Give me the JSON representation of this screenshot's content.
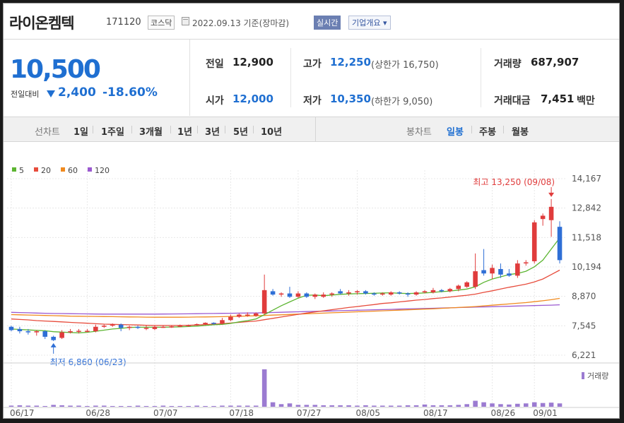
{
  "header": {
    "company_name": "라이온켐텍",
    "code": "171120",
    "market": "코스닥",
    "date_text": "2022.09.13 기준(장마감)",
    "realtime_label": "실시간",
    "company_info_label": "기업개요 ▾"
  },
  "price": {
    "current": "10,500",
    "change_label": "전일대비",
    "change": "2,400",
    "change_rate": "-18.60%"
  },
  "stats": {
    "prev_close_label": "전일",
    "prev_close": "12,900",
    "high_label": "고가",
    "high": "12,250",
    "upper_limit": "(상한가 16,750)",
    "volume_label": "거래량",
    "volume": "687,907",
    "open_label": "시가",
    "open": "12,000",
    "low_label": "저가",
    "low": "10,350",
    "lower_limit": "(하한가 9,050)",
    "amount_label": "거래대금",
    "amount": "7,451",
    "amount_unit": "백만"
  },
  "toolbar": {
    "line_chart_label": "선차트",
    "ranges": [
      "1일",
      "1주일",
      "3개월",
      "1년",
      "3년",
      "5년",
      "10년"
    ],
    "candle_chart_label": "봉차트",
    "candle_modes": [
      "일봉",
      "주봉",
      "월봉"
    ],
    "selected_candle_mode": "일봉"
  },
  "chart_data": {
    "type": "candlestick",
    "ma_legend": [
      {
        "name": "5",
        "color": "#5cb531"
      },
      {
        "name": "20",
        "color": "#e74c3c"
      },
      {
        "name": "60",
        "color": "#f08a1f"
      },
      {
        "name": "120",
        "color": "#9b59d0"
      }
    ],
    "y_ticks": [
      "14,167",
      "12,842",
      "11,518",
      "10,194",
      "8,870",
      "7,545",
      "6,221"
    ],
    "ylim": [
      6221,
      14167
    ],
    "x_ticks": [
      "06/17",
      "06/28",
      "07/07",
      "07/18",
      "07/27",
      "08/05",
      "08/17",
      "08/26",
      "09/01"
    ],
    "high_annotation": "최고 13,250 (09/08)",
    "low_annotation": "최저 6,860 (06/23)",
    "volume_legend": "거래량",
    "candles": [
      {
        "o": 7500,
        "h": 7550,
        "l": 7300,
        "c": 7350
      },
      {
        "o": 7400,
        "h": 7500,
        "l": 7200,
        "c": 7300
      },
      {
        "o": 7300,
        "h": 7400,
        "l": 7150,
        "c": 7250
      },
      {
        "o": 7250,
        "h": 7350,
        "l": 7100,
        "c": 7300
      },
      {
        "o": 7300,
        "h": 7350,
        "l": 6950,
        "c": 7050
      },
      {
        "o": 7050,
        "h": 7100,
        "l": 6860,
        "c": 6900
      },
      {
        "o": 7000,
        "h": 7350,
        "l": 6950,
        "c": 7250
      },
      {
        "o": 7250,
        "h": 7400,
        "l": 7200,
        "c": 7300
      },
      {
        "o": 7300,
        "h": 7400,
        "l": 7200,
        "c": 7320
      },
      {
        "o": 7300,
        "h": 7400,
        "l": 7250,
        "c": 7320
      },
      {
        "o": 7300,
        "h": 7600,
        "l": 7250,
        "c": 7500
      },
      {
        "o": 7500,
        "h": 7600,
        "l": 7450,
        "c": 7550
      },
      {
        "o": 7550,
        "h": 7650,
        "l": 7500,
        "c": 7600
      },
      {
        "o": 7600,
        "h": 7650,
        "l": 7300,
        "c": 7450
      },
      {
        "o": 7450,
        "h": 7550,
        "l": 7350,
        "c": 7500
      },
      {
        "o": 7500,
        "h": 7550,
        "l": 7400,
        "c": 7450
      },
      {
        "o": 7450,
        "h": 7550,
        "l": 7350,
        "c": 7450
      },
      {
        "o": 7400,
        "h": 7550,
        "l": 7350,
        "c": 7500
      },
      {
        "o": 7500,
        "h": 7550,
        "l": 7450,
        "c": 7500
      },
      {
        "o": 7500,
        "h": 7550,
        "l": 7450,
        "c": 7520
      },
      {
        "o": 7520,
        "h": 7600,
        "l": 7500,
        "c": 7550
      },
      {
        "o": 7550,
        "h": 7600,
        "l": 7500,
        "c": 7580
      },
      {
        "o": 7580,
        "h": 7650,
        "l": 7550,
        "c": 7620
      },
      {
        "o": 7620,
        "h": 7700,
        "l": 7580,
        "c": 7680
      },
      {
        "o": 7680,
        "h": 7700,
        "l": 7600,
        "c": 7650
      },
      {
        "o": 7650,
        "h": 7900,
        "l": 7600,
        "c": 7800
      },
      {
        "o": 7800,
        "h": 8050,
        "l": 7750,
        "c": 7950
      },
      {
        "o": 7950,
        "h": 8100,
        "l": 7900,
        "c": 8050
      },
      {
        "o": 8050,
        "h": 8150,
        "l": 7950,
        "c": 8050
      },
      {
        "o": 8000,
        "h": 8150,
        "l": 7950,
        "c": 8100
      },
      {
        "o": 8100,
        "h": 9850,
        "l": 8050,
        "c": 9150
      },
      {
        "o": 9100,
        "h": 9200,
        "l": 8900,
        "c": 8950
      },
      {
        "o": 8950,
        "h": 9050,
        "l": 8850,
        "c": 9000
      },
      {
        "o": 9000,
        "h": 9300,
        "l": 8800,
        "c": 8850
      },
      {
        "o": 8850,
        "h": 9100,
        "l": 8800,
        "c": 9000
      },
      {
        "o": 9000,
        "h": 9050,
        "l": 8800,
        "c": 8850
      },
      {
        "o": 8850,
        "h": 9000,
        "l": 8750,
        "c": 8950
      },
      {
        "o": 8850,
        "h": 9050,
        "l": 8800,
        "c": 8950
      },
      {
        "o": 8950,
        "h": 9050,
        "l": 8850,
        "c": 9000
      },
      {
        "o": 9100,
        "h": 9200,
        "l": 8950,
        "c": 9000
      },
      {
        "o": 9000,
        "h": 9150,
        "l": 8900,
        "c": 9050
      },
      {
        "o": 9050,
        "h": 9150,
        "l": 8950,
        "c": 9100
      },
      {
        "o": 9100,
        "h": 9150,
        "l": 8950,
        "c": 9000
      },
      {
        "o": 9000,
        "h": 9050,
        "l": 8900,
        "c": 8950
      },
      {
        "o": 8950,
        "h": 9050,
        "l": 8900,
        "c": 9000
      },
      {
        "o": 8950,
        "h": 9100,
        "l": 8900,
        "c": 9050
      },
      {
        "o": 9050,
        "h": 9100,
        "l": 8950,
        "c": 9000
      },
      {
        "o": 9000,
        "h": 9050,
        "l": 8850,
        "c": 8950
      },
      {
        "o": 8950,
        "h": 9100,
        "l": 8900,
        "c": 9050
      },
      {
        "o": 9050,
        "h": 9150,
        "l": 9000,
        "c": 9100
      },
      {
        "o": 9050,
        "h": 9250,
        "l": 9000,
        "c": 9150
      },
      {
        "o": 9150,
        "h": 9200,
        "l": 9050,
        "c": 9100
      },
      {
        "o": 9100,
        "h": 9250,
        "l": 9050,
        "c": 9200
      },
      {
        "o": 9200,
        "h": 9400,
        "l": 9100,
        "c": 9350
      },
      {
        "o": 9300,
        "h": 9550,
        "l": 9250,
        "c": 9500
      },
      {
        "o": 9300,
        "h": 10800,
        "l": 9200,
        "c": 10000
      },
      {
        "o": 10050,
        "h": 11000,
        "l": 9800,
        "c": 9900
      },
      {
        "o": 9900,
        "h": 10300,
        "l": 9650,
        "c": 10150
      },
      {
        "o": 10100,
        "h": 10350,
        "l": 9700,
        "c": 9850
      },
      {
        "o": 9900,
        "h": 10100,
        "l": 9750,
        "c": 9800
      },
      {
        "o": 9800,
        "h": 10500,
        "l": 9700,
        "c": 10350
      },
      {
        "o": 10400,
        "h": 10500,
        "l": 10250,
        "c": 10400
      },
      {
        "o": 10450,
        "h": 12300,
        "l": 10350,
        "c": 12200
      },
      {
        "o": 12350,
        "h": 12600,
        "l": 12050,
        "c": 12500
      },
      {
        "o": 12300,
        "h": 13250,
        "l": 11550,
        "c": 12900
      },
      {
        "o": 12000,
        "h": 12250,
        "l": 10350,
        "c": 10500
      }
    ],
    "ma5": [
      7400,
      7380,
      7360,
      7340,
      7320,
      7280,
      7260,
      7240,
      7230,
      7250,
      7300,
      7350,
      7400,
      7430,
      7470,
      7480,
      7480,
      7480,
      7480,
      7490,
      7500,
      7510,
      7530,
      7560,
      7590,
      7610,
      7650,
      7720,
      7780,
      7850,
      8050,
      8250,
      8450,
      8620,
      8790,
      8920,
      8930,
      8900,
      8930,
      8960,
      8980,
      8990,
      9000,
      9010,
      9020,
      9030,
      9010,
      9000,
      9010,
      9020,
      9050,
      9080,
      9110,
      9150,
      9200,
      9300,
      9500,
      9650,
      9750,
      9850,
      9900,
      10000,
      10200,
      10500,
      11000,
      11500
    ],
    "ma20": [
      7850,
      7830,
      7810,
      7780,
      7760,
      7740,
      7720,
      7700,
      7680,
      7660,
      7640,
      7620,
      7610,
      7600,
      7590,
      7580,
      7570,
      7560,
      7560,
      7560,
      7560,
      7570,
      7580,
      7600,
      7620,
      7640,
      7670,
      7700,
      7730,
      7760,
      7820,
      7880,
      7940,
      8000,
      8060,
      8120,
      8170,
      8220,
      8270,
      8320,
      8370,
      8410,
      8460,
      8500,
      8550,
      8580,
      8620,
      8660,
      8700,
      8730,
      8770,
      8800,
      8840,
      8880,
      8920,
      8970,
      9050,
      9120,
      9200,
      9280,
      9350,
      9420,
      9520,
      9650,
      9850,
      10050
    ],
    "ma60": [
      8050,
      8040,
      8030,
      8020,
      8010,
      8000,
      7990,
      7980,
      7975,
      7970,
      7965,
      7960,
      7955,
      7950,
      7945,
      7940,
      7935,
      7930,
      7930,
      7930,
      7930,
      7935,
      7940,
      7945,
      7950,
      7955,
      7965,
      7975,
      7985,
      7995,
      8010,
      8025,
      8040,
      8055,
      8070,
      8085,
      8100,
      8115,
      8130,
      8145,
      8160,
      8175,
      8190,
      8205,
      8220,
      8235,
      8250,
      8265,
      8280,
      8295,
      8310,
      8330,
      8350,
      8370,
      8390,
      8410,
      8440,
      8470,
      8500,
      8530,
      8560,
      8590,
      8630,
      8670,
      8720,
      8780
    ],
    "ma120": [
      8150,
      8140,
      8130,
      8120,
      8110,
      8100,
      8095,
      8090,
      8085,
      8080,
      8075,
      8070,
      8070,
      8070,
      8070,
      8070,
      8070,
      8072,
      8075,
      8078,
      8080,
      8085,
      8090,
      8095,
      8100,
      8105,
      8110,
      8115,
      8120,
      8125,
      8135,
      8145,
      8155,
      8165,
      8175,
      8185,
      8195,
      8205,
      8215,
      8225,
      8235,
      8245,
      8255,
      8265,
      8275,
      8285,
      8295,
      8305,
      8315,
      8325,
      8335,
      8345,
      8355,
      8365,
      8375,
      8385,
      8395,
      8405,
      8415,
      8425,
      8435,
      8445,
      8455,
      8465,
      8475,
      8490
    ],
    "volume_index": [
      3,
      4,
      3,
      3,
      2,
      5,
      4,
      3,
      3,
      2,
      3,
      3,
      2,
      2,
      2,
      3,
      2,
      2,
      3,
      2,
      2,
      2,
      3,
      2,
      2,
      3,
      3,
      3,
      3,
      3,
      100,
      12,
      7,
      9,
      5,
      5,
      5,
      4,
      4,
      4,
      4,
      3,
      4,
      3,
      3,
      3,
      3,
      4,
      4,
      6,
      4,
      4,
      4,
      5,
      7,
      16,
      12,
      9,
      7,
      6,
      8,
      9,
      12,
      10,
      11,
      9
    ]
  }
}
